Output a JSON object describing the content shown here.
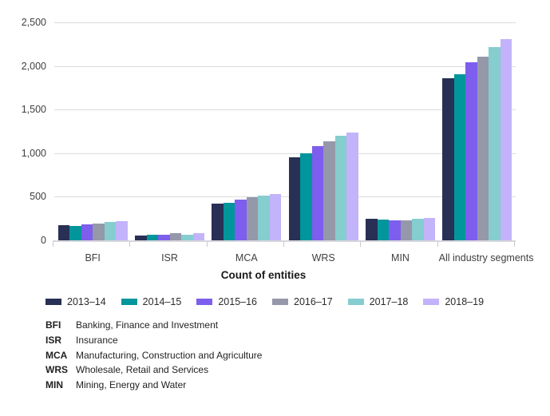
{
  "chart_data": {
    "type": "bar",
    "title": "",
    "xlabel": "Count of entities",
    "ylabel": "",
    "grid": "horizontal",
    "legend_position": "bottom",
    "categories": [
      "BFI",
      "ISR",
      "MCA",
      "WRS",
      "MIN",
      "All industry segments"
    ],
    "series": [
      {
        "name": "2013–14",
        "color": "#293055",
        "values": [
          172,
          55,
          424,
          950,
          245,
          1859
        ]
      },
      {
        "name": "2014–15",
        "color": "#00969b",
        "values": [
          168,
          65,
          434,
          1000,
          240,
          1904
        ]
      },
      {
        "name": "2015–16",
        "color": "#7e5eee",
        "values": [
          185,
          66,
          468,
          1085,
          233,
          2043
        ]
      },
      {
        "name": "2016–17",
        "color": "#9598a9",
        "values": [
          196,
          83,
          491,
          1135,
          225,
          2109
        ]
      },
      {
        "name": "2017–18",
        "color": "#85cdcf",
        "values": [
          213,
          68,
          509,
          1200,
          243,
          2214
        ]
      },
      {
        "name": "2018–19",
        "color": "#c3b3fa",
        "values": [
          222,
          81,
          530,
          1240,
          258,
          2311
        ]
      }
    ],
    "ylim": [
      0,
      2500
    ],
    "yticks": [
      0,
      500,
      1000,
      1500,
      2000,
      2500
    ],
    "ytick_labels": [
      "0",
      "500",
      "1,000",
      "1,500",
      "2,000",
      "2,500"
    ]
  },
  "footnotes": [
    {
      "abbr": "BFI",
      "definition": "Banking, Finance and Investment"
    },
    {
      "abbr": "ISR",
      "definition": "Insurance"
    },
    {
      "abbr": "MCA",
      "definition": "Manufacturing, Construction and Agriculture"
    },
    {
      "abbr": "WRS",
      "definition": "Wholesale, Retail and Services"
    },
    {
      "abbr": "MIN",
      "definition": "Mining, Energy and Water"
    }
  ],
  "colors": {
    "gridline": "#dcdce1",
    "axis_line": "#d7d7dc",
    "axis_text": "#404040",
    "title_text": "#1a1a1a"
  }
}
